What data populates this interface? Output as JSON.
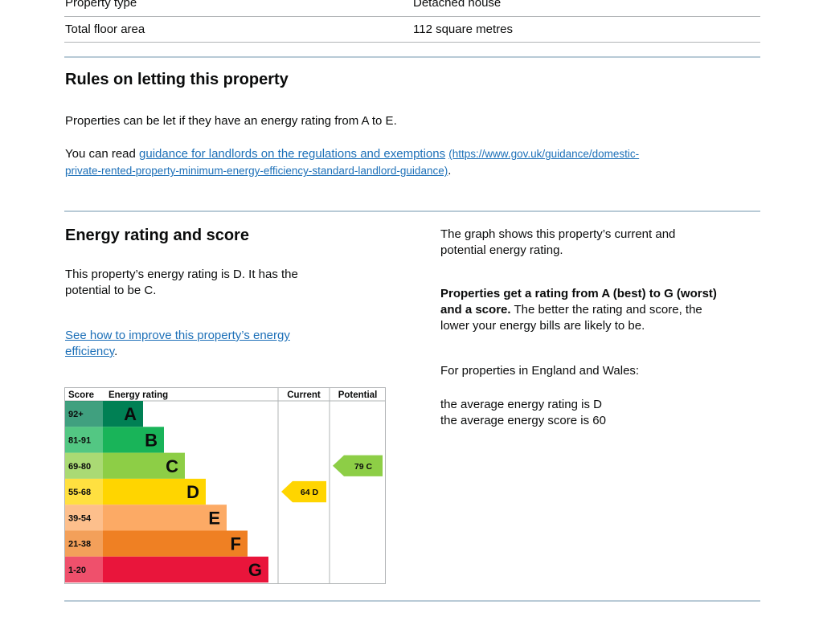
{
  "summary": {
    "rows": [
      {
        "label": "Property type",
        "value": "Detached house"
      },
      {
        "label": "Total floor area",
        "value": "112 square metres"
      }
    ]
  },
  "letting": {
    "heading": "Rules on letting this property",
    "para1": "Properties can be let if they have an energy rating from A to E.",
    "para2_prefix": "You can read ",
    "link_text": "guidance for landlords on the regulations and exemptions",
    "link_url_line1": "(https://www.gov.uk/guidance/domestic-",
    "link_url_line2": "private-rented-property-minimum-energy-efficiency-standard-landlord-guidance)",
    "para2_suffix": "."
  },
  "energy": {
    "heading": "Energy rating and score",
    "rating_text_line1": "This property’s energy rating is D. It has the",
    "rating_text_line2": "potential to be C.",
    "improve_link_line1": "See how to improve this property’s energy",
    "improve_link_line2": "efficiency",
    "improve_suffix": ".",
    "graph_text_line1": "The graph shows this property’s current and",
    "graph_text_line2": "potential energy rating.",
    "bold_line1": "Properties get a rating from A (best) to G (worst)",
    "bold_line2": "and a score.",
    "normal_after_bold": " The better the rating and score, the",
    "normal_line3": "lower your energy bills are likely to be.",
    "region_text": "For properties in England and Wales:",
    "avg_rating_text": "the average energy rating is D",
    "avg_score_text": "the average energy score is 60"
  },
  "chart_data": {
    "type": "bar",
    "headers": {
      "score": "Score",
      "rating": "Energy rating",
      "current": "Current",
      "potential": "Potential"
    },
    "bands": [
      {
        "range": "92+",
        "letter": "A",
        "color": "#008054"
      },
      {
        "range": "81-91",
        "letter": "B",
        "color": "#19b459"
      },
      {
        "range": "69-80",
        "letter": "C",
        "color": "#8dce46"
      },
      {
        "range": "55-68",
        "letter": "D",
        "color": "#ffd500"
      },
      {
        "range": "39-54",
        "letter": "E",
        "color": "#fcaa65"
      },
      {
        "range": "21-38",
        "letter": "F",
        "color": "#ef8023"
      },
      {
        "range": "1-20",
        "letter": "G",
        "color": "#e9153b"
      }
    ],
    "current": {
      "score": 64,
      "letter": "D",
      "label": "64  D",
      "color": "#ffd500"
    },
    "potential": {
      "score": 79,
      "letter": "C",
      "label": "79  C",
      "color": "#8dce46"
    }
  }
}
